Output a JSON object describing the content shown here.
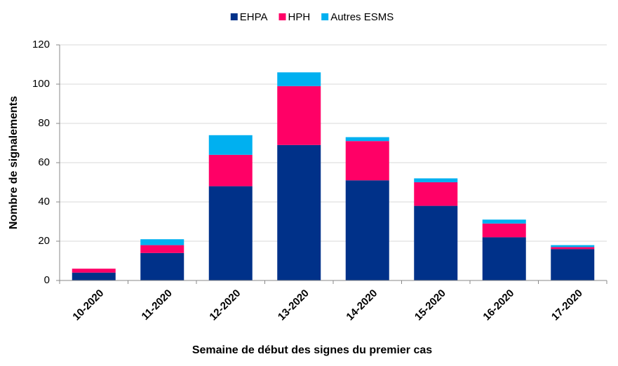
{
  "chart_data": {
    "type": "bar",
    "stacked": true,
    "x_label": "Semaine de début des signes du premier cas",
    "y_label": "Nombre de signalements",
    "categories": [
      "10-2020",
      "11-2020",
      "12-2020",
      "13-2020",
      "14-2020",
      "15-2020",
      "16-2020",
      "17-2020"
    ],
    "series": [
      {
        "name": "EHPA",
        "color": "#003189",
        "values": [
          4,
          14,
          48,
          69,
          51,
          38,
          22,
          16
        ]
      },
      {
        "name": "HPH",
        "color": "#ff0066",
        "values": [
          2,
          4,
          16,
          30,
          20,
          12,
          7,
          1
        ]
      },
      {
        "name": "Autres ESMS",
        "color": "#00b0f0",
        "values": [
          0,
          3,
          10,
          7,
          2,
          2,
          2,
          1
        ]
      }
    ],
    "ylim": [
      0,
      120
    ],
    "yticks": [
      0,
      20,
      40,
      60,
      80,
      100,
      120
    ],
    "grid": true,
    "legend": "top"
  }
}
